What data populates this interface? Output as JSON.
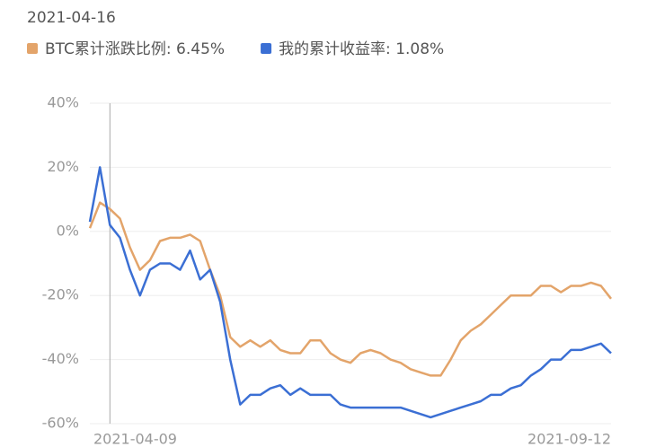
{
  "chart_data": {
    "type": "line",
    "cursor": {
      "label": "2021-04-16",
      "index": 2
    },
    "categories": [
      "2021-04-09",
      null,
      null,
      null,
      null,
      null,
      null,
      null,
      null,
      null,
      null,
      null,
      null,
      null,
      null,
      null,
      null,
      null,
      null,
      null,
      null,
      null,
      null,
      null,
      null,
      null,
      null,
      null,
      null,
      null,
      null,
      null,
      null,
      null,
      null,
      null,
      null,
      null,
      null,
      null,
      null,
      null,
      null,
      null,
      null,
      null,
      null,
      null,
      null,
      null,
      null,
      null,
      "2021-09-12"
    ],
    "series": [
      {
        "name": "BTC累计涨跌比例: 6.45%",
        "color": "#e3a46a",
        "values": [
          1,
          9,
          7,
          4,
          -5,
          -12,
          -9,
          -3,
          -2,
          -2,
          -1,
          -3,
          -12,
          -20,
          -33,
          -36,
          -34,
          -36,
          -34,
          -37,
          -38,
          -38,
          -34,
          -34,
          -38,
          -40,
          -41,
          -38,
          -37,
          -38,
          -40,
          -41,
          -43,
          -44,
          -45,
          -45,
          -40,
          -34,
          -31,
          -29,
          -26,
          -23,
          -20,
          -20,
          -20,
          -17,
          -17,
          -19,
          -17,
          -17,
          -16,
          -17,
          -21
        ]
      },
      {
        "name": "我的累计收益率: 1.08%",
        "color": "#3b6fd4",
        "values": [
          3,
          20,
          2,
          -2,
          -12,
          -20,
          -12,
          -10,
          -10,
          -12,
          -6,
          -15,
          -12,
          -22,
          -40,
          -54,
          -51,
          -51,
          -49,
          -48,
          -51,
          -49,
          -51,
          -51,
          -51,
          -54,
          -55,
          -55,
          -55,
          -55,
          -55,
          -55,
          -56,
          -57,
          -58,
          -57,
          -56,
          -55,
          -54,
          -53,
          -51,
          -51,
          -49,
          -48,
          -45,
          -43,
          -40,
          -40,
          -37,
          -37,
          -36,
          -35,
          -38
        ]
      }
    ],
    "ylim": [
      -60,
      40
    ],
    "yticks": [
      {
        "value": 40,
        "label": "40%"
      },
      {
        "value": 20,
        "label": "20%"
      },
      {
        "value": 0,
        "label": "0%"
      },
      {
        "value": -20,
        "label": "-20%"
      },
      {
        "value": -40,
        "label": "-40%"
      },
      {
        "value": -60,
        "label": "-60%"
      }
    ],
    "grid": true
  }
}
